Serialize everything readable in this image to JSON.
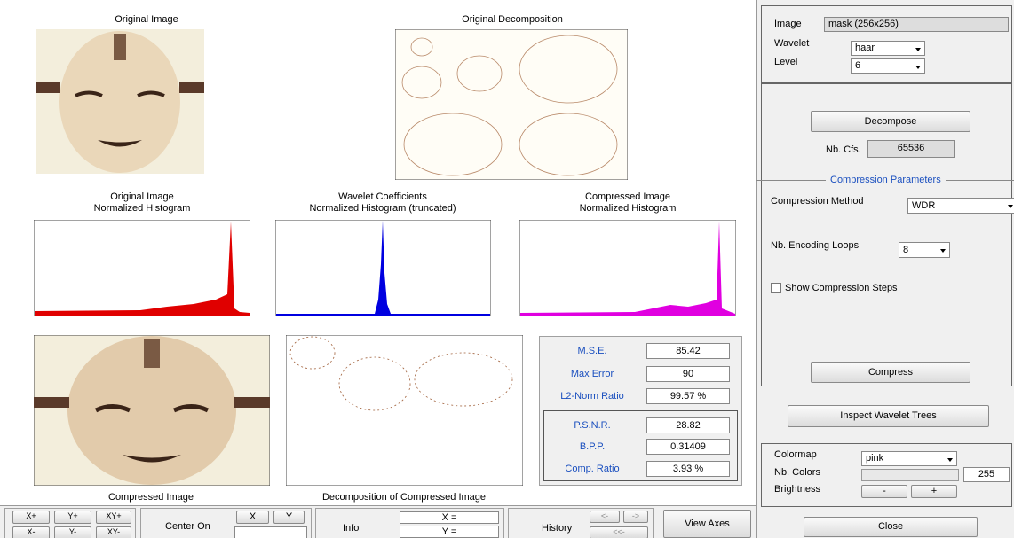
{
  "main": {
    "original_image_title": "Original Image",
    "original_decomposition_title": "Original Decomposition",
    "histograms": [
      {
        "title": "Original Image",
        "subtitle": "Normalized Histogram"
      },
      {
        "title": "Wavelet Coefficients",
        "subtitle": "Normalized Histogram (truncated)"
      },
      {
        "title": "Compressed Image",
        "subtitle": "Normalized Histogram"
      }
    ],
    "compressed_image_title": "Compressed Image",
    "compressed_decomposition_title": "Decomposition of Compressed Image"
  },
  "stats": [
    {
      "label": "M.S.E.",
      "value": 85.42
    },
    {
      "label": "Max Error",
      "value": 90
    },
    {
      "label": "L2-Norm Ratio",
      "value": "99.57 %"
    },
    {
      "label": "P.S.N.R.",
      "value": 28.82
    },
    {
      "label": "B.P.P.",
      "value": 0.31409
    },
    {
      "label": "Comp. Ratio",
      "value": "3.93 %"
    }
  ],
  "toolbar": {
    "zoom_buttons": [
      "X+",
      "Y+",
      "XY+",
      "X-",
      "Y-",
      "XY-"
    ],
    "center_on": "Center On",
    "center_x": "X",
    "center_y": "Y",
    "info": "Info",
    "info_x": "X =",
    "info_y": "Y =",
    "history": "History",
    "history_buttons": [
      "<-",
      "->",
      "<<-"
    ],
    "view_axes": "View Axes"
  },
  "control_panel": {
    "image_label": "Image",
    "image_value": "mask (256x256)",
    "wavelet_label": "Wavelet",
    "wavelet_value": "haar",
    "level_label": "Level",
    "level_value": 6,
    "decompose": "Decompose",
    "nb_cfs_label": "Nb. Cfs.",
    "nb_cfs_value": 65536,
    "compression": {
      "title": "Compression Parameters",
      "method_label": "Compression Method",
      "method_value": "WDR",
      "loops_label": "Nb. Encoding Loops",
      "loops_value": 8,
      "show_steps": "Show Compression Steps",
      "compress": "Compress"
    },
    "inspect": "Inspect Wavelet Trees",
    "display": {
      "colormap_label": "Colormap",
      "colormap_value": "pink",
      "nb_colors_label": "Nb. Colors",
      "nb_colors_value": 255,
      "brightness_label": "Brightness",
      "minus": "-",
      "plus": "+"
    },
    "close": "Close"
  }
}
